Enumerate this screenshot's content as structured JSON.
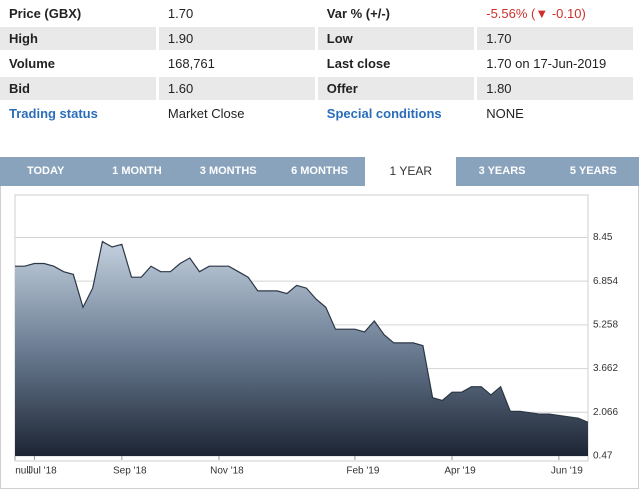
{
  "quote_table": {
    "rows": [
      [
        "Price (GBX)",
        "1.70",
        "Var % (+/-)",
        "-5.56% (▼ -0.10)"
      ],
      [
        "High",
        "1.90",
        "Low",
        "1.70"
      ],
      [
        "Volume",
        "168,761",
        "Last close",
        "1.70 on 17-Jun-2019"
      ],
      [
        "Bid",
        "1.60",
        "Offer",
        "1.80"
      ],
      [
        "Trading status",
        "Market Close",
        "Special conditions",
        "NONE"
      ]
    ]
  },
  "tabs": [
    "TODAY",
    "1 MONTH",
    "3 MONTHS",
    "6 MONTHS",
    "1 YEAR",
    "3 YEARS",
    "5 YEARS"
  ],
  "selected_tab": "1 YEAR",
  "chart_data": {
    "type": "area",
    "color": "#2b3646",
    "categories": [
      "null",
      null,
      "Jul '18",
      null,
      null,
      null,
      null,
      null,
      null,
      null,
      null,
      "Sep '18",
      null,
      null,
      null,
      null,
      null,
      null,
      null,
      null,
      null,
      "Nov '18",
      null,
      null,
      null,
      null,
      null,
      null,
      null,
      null,
      null,
      null,
      null,
      null,
      null,
      "Feb '19",
      null,
      null,
      null,
      null,
      null,
      null,
      null,
      null,
      null,
      "Apr '19",
      null,
      null,
      null,
      null,
      null,
      null,
      null,
      null,
      null,
      null,
      "Jun '19",
      null,
      null,
      null
    ],
    "values": [
      7.4,
      7.4,
      7.5,
      7.5,
      7.4,
      7.2,
      7.1,
      5.9,
      6.6,
      8.3,
      8.1,
      8.2,
      7.0,
      7.0,
      7.4,
      7.2,
      7.2,
      7.5,
      7.7,
      7.2,
      7.4,
      7.4,
      7.4,
      7.2,
      7.0,
      6.5,
      6.5,
      6.5,
      6.4,
      6.7,
      6.6,
      6.2,
      5.9,
      5.1,
      5.1,
      5.1,
      5.0,
      5.4,
      4.9,
      4.6,
      4.6,
      4.6,
      4.5,
      2.6,
      2.5,
      2.8,
      2.8,
      3.0,
      3.0,
      2.7,
      3.0,
      2.1,
      2.1,
      2.05,
      2.0,
      2.0,
      1.95,
      1.9,
      1.85,
      1.7
    ],
    "ylim": [
      0.47,
      10.0
    ],
    "yticks": [
      0.47,
      2.066,
      3.662,
      5.258,
      6.854,
      8.45
    ],
    "grid": true
  }
}
